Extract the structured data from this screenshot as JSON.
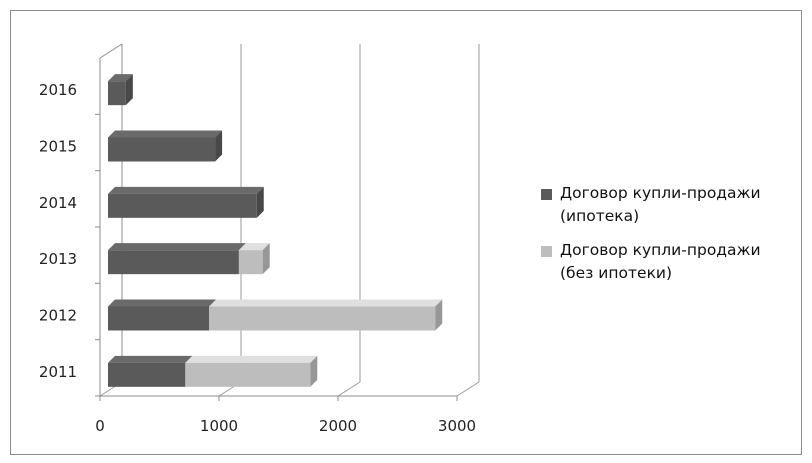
{
  "chart_data": {
    "type": "bar",
    "orientation": "horizontal",
    "stacked": true,
    "style_3d": true,
    "categories": [
      "2011",
      "2012",
      "2013",
      "2014",
      "2015",
      "2016"
    ],
    "series": [
      {
        "name": "Договор купли-продажи\n(ипотека)",
        "values": [
          650,
          850,
          1100,
          1250,
          900,
          150
        ],
        "color": "#5a5a5a"
      },
      {
        "name": "Договор купли-продажи\n(без ипотеки)",
        "values": [
          1050,
          1900,
          200,
          0,
          0,
          0
        ],
        "color": "#bdbdbd"
      }
    ],
    "x_ticks": [
      "0",
      "1000",
      "2000",
      "3000"
    ],
    "xlim": [
      0,
      3000
    ],
    "xlabel": "",
    "ylabel": "",
    "title": "",
    "grid": "vertical",
    "legend_position": "right"
  }
}
